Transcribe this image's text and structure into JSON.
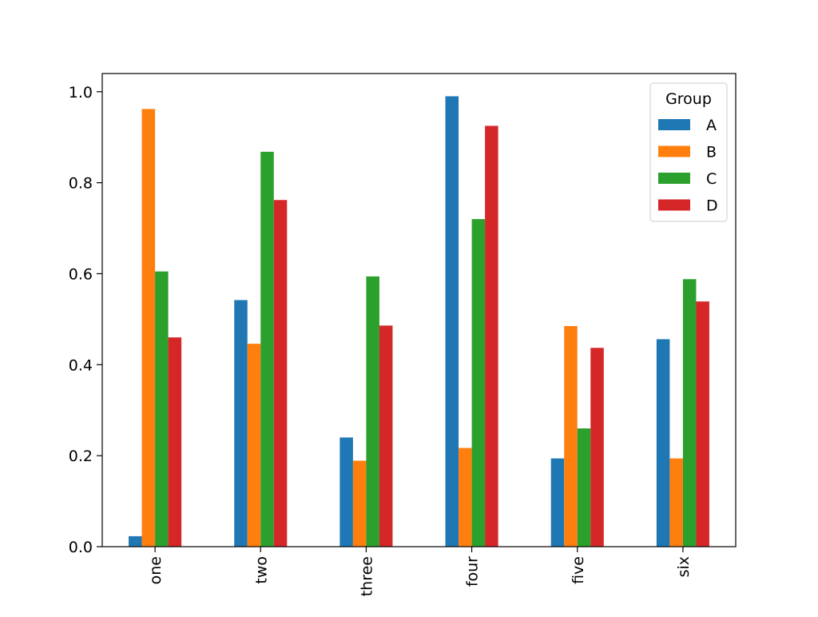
{
  "chart_data": {
    "type": "bar",
    "title": "",
    "xlabel": "",
    "ylabel": "",
    "categories": [
      "one",
      "two",
      "three",
      "four",
      "five",
      "six"
    ],
    "series": [
      {
        "name": "A",
        "color": "#1f77b4",
        "values": [
          0.023,
          0.542,
          0.24,
          0.99,
          0.194,
          0.456
        ]
      },
      {
        "name": "B",
        "color": "#ff7f0e",
        "values": [
          0.962,
          0.446,
          0.189,
          0.217,
          0.485,
          0.194
        ]
      },
      {
        "name": "C",
        "color": "#2ca02c",
        "values": [
          0.605,
          0.868,
          0.594,
          0.72,
          0.26,
          0.588
        ]
      },
      {
        "name": "D",
        "color": "#d62728",
        "values": [
          0.46,
          0.762,
          0.486,
          0.925,
          0.437,
          0.539
        ]
      }
    ],
    "ylim": [
      0,
      1.04
    ],
    "yticks": [
      0.0,
      0.2,
      0.4,
      0.6,
      0.8,
      1.0
    ],
    "ytick_labels": [
      "0.0",
      "0.2",
      "0.4",
      "0.6",
      "0.8",
      "1.0"
    ],
    "grid": false,
    "legend": {
      "title": "Group",
      "placement": "upper right"
    }
  }
}
